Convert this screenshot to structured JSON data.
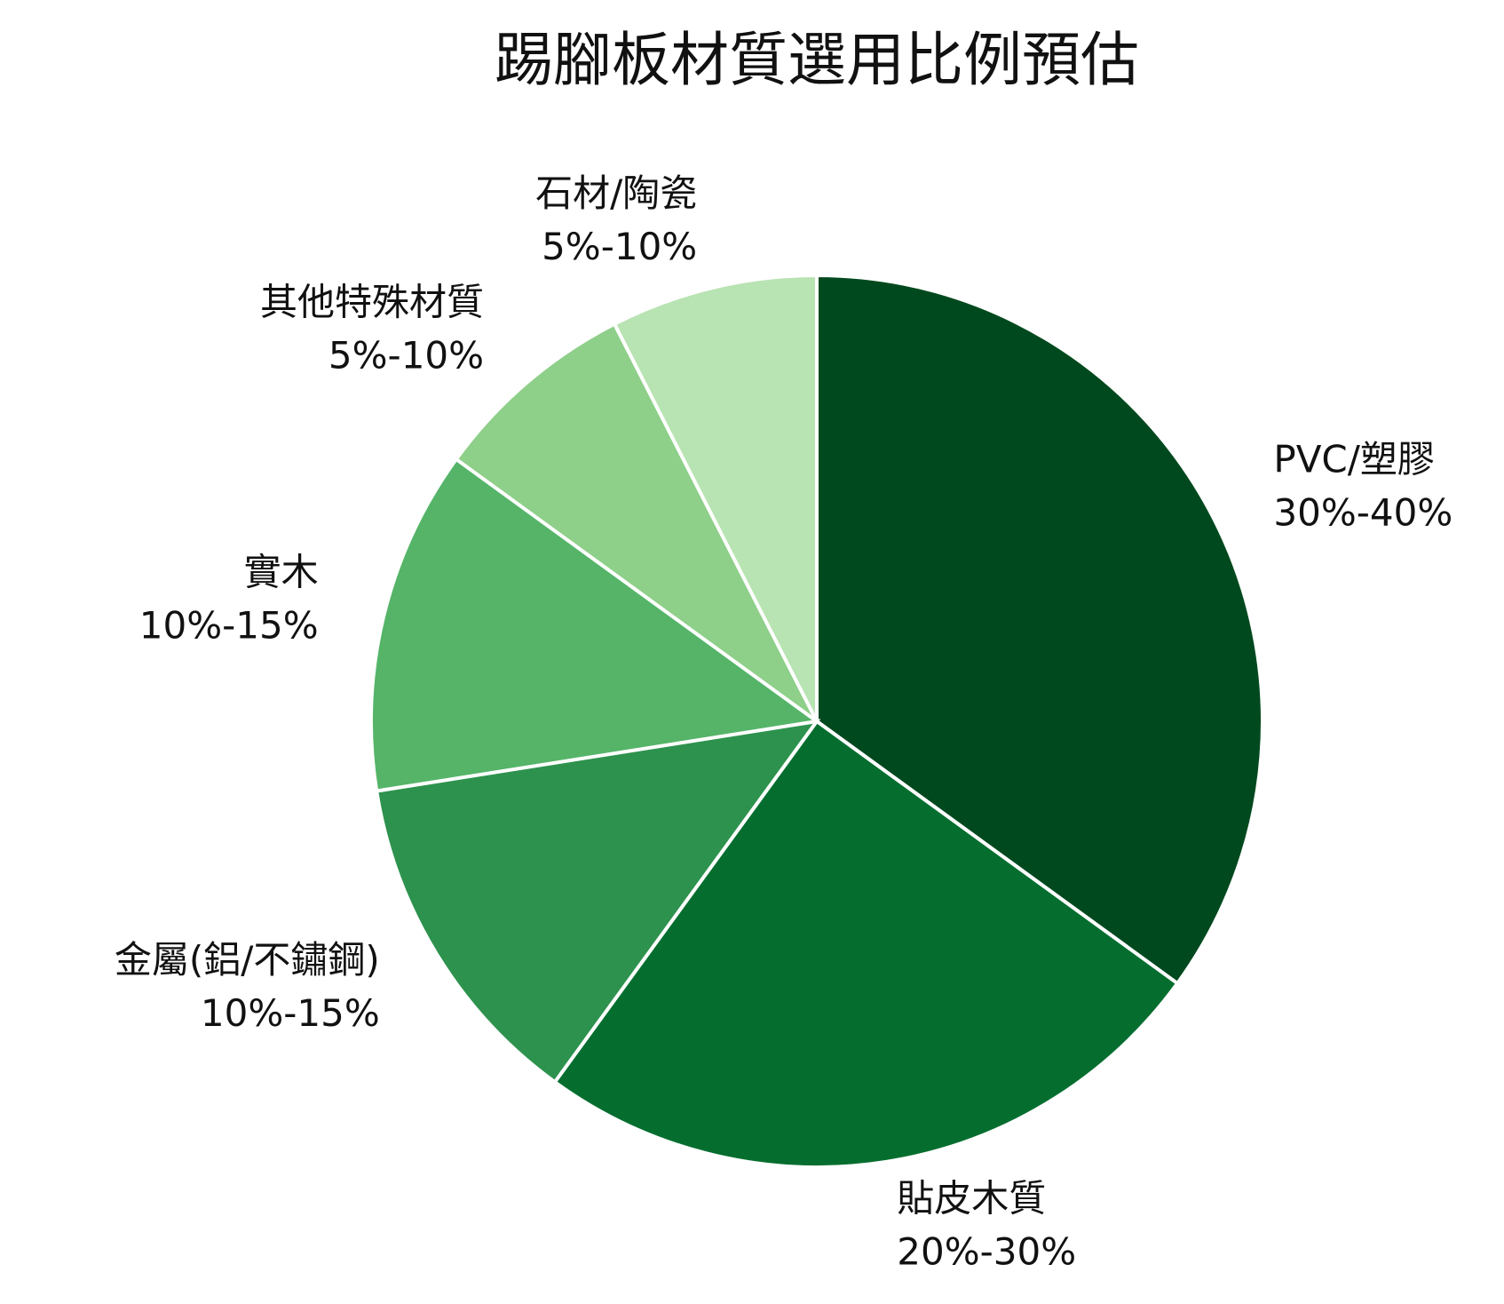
{
  "chart_data": {
    "type": "pie",
    "title": "踢腳板材質選用比例預估",
    "categories": [
      "PVC/塑膠",
      "貼皮木質",
      "金屬(鋁/不鏽鋼)",
      "實木",
      "其他特殊材質",
      "石材/陶瓷"
    ],
    "values": [
      35,
      25,
      12.5,
      12.5,
      7.5,
      7.5
    ],
    "value_labels": [
      "30%-40%",
      "20%-30%",
      "10%-15%",
      "10%-15%",
      "5%-10%",
      "5%-10%"
    ],
    "colors": [
      "#00491e",
      "#056e2f",
      "#2d924d",
      "#55b468",
      "#8ecf89",
      "#b8e3b2"
    ]
  }
}
